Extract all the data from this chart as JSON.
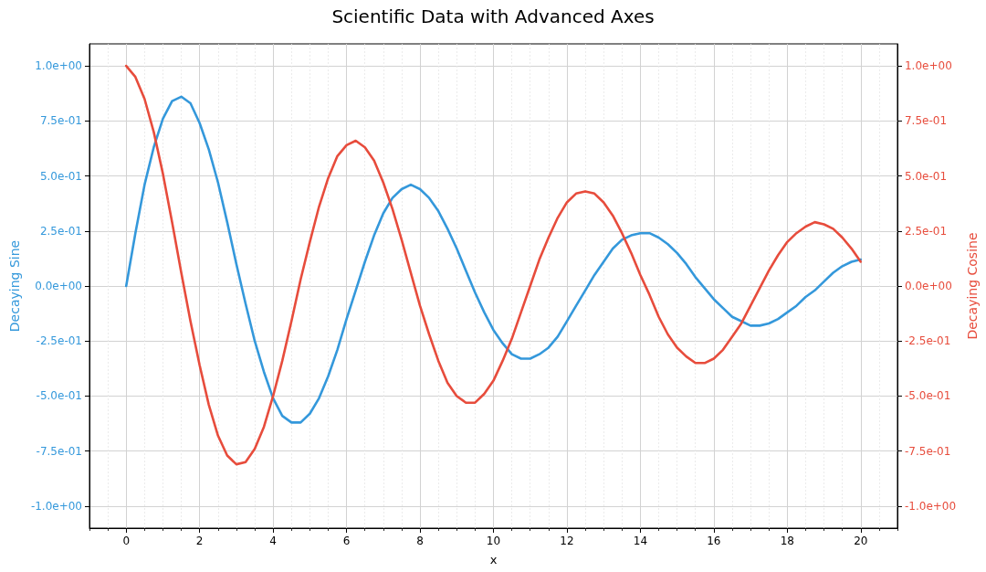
{
  "chart_data": {
    "type": "line",
    "title": "Scientific Data with Advanced Axes",
    "xlabel": "x",
    "ylabel": "Decaying Sine",
    "y2label": "Decaying Cosine",
    "x": [
      0,
      0.25,
      0.5,
      0.75,
      1,
      1.25,
      1.5,
      1.75,
      2,
      2.25,
      2.5,
      2.75,
      3,
      3.25,
      3.5,
      3.75,
      4,
      4.25,
      4.5,
      4.75,
      5,
      5.25,
      5.5,
      5.75,
      6,
      6.25,
      6.5,
      6.75,
      7,
      7.25,
      7.5,
      7.75,
      8,
      8.25,
      8.5,
      8.75,
      9,
      9.25,
      9.5,
      9.75,
      10,
      10.25,
      10.5,
      10.75,
      11,
      11.25,
      11.5,
      11.75,
      12,
      12.25,
      12.5,
      12.75,
      13,
      13.25,
      13.5,
      13.75,
      14,
      14.25,
      14.5,
      14.75,
      15,
      15.25,
      15.5,
      15.75,
      16,
      16.25,
      16.5,
      16.75,
      17,
      17.25,
      17.5,
      17.75,
      18,
      18.25,
      18.5,
      18.75,
      19,
      19.25,
      19.5,
      19.75,
      20
    ],
    "series": [
      {
        "color": "#3498db",
        "values": [
          0,
          0.24,
          0.46,
          0.63,
          0.76,
          0.84,
          0.86,
          0.83,
          0.74,
          0.62,
          0.47,
          0.29,
          0.1,
          -0.08,
          -0.25,
          -0.39,
          -0.51,
          -0.59,
          -0.62,
          -0.62,
          -0.58,
          -0.51,
          -0.41,
          -0.29,
          -0.15,
          -0.02,
          0.11,
          0.23,
          0.33,
          0.4,
          0.44,
          0.46,
          0.44,
          0.4,
          0.34,
          0.26,
          0.17,
          0.07,
          -0.03,
          -0.12,
          -0.2,
          -0.26,
          -0.31,
          -0.33,
          -0.33,
          -0.31,
          -0.28,
          -0.23,
          -0.16,
          -0.09,
          -0.02,
          0.05,
          0.11,
          0.17,
          0.21,
          0.23,
          0.24,
          0.24,
          0.22,
          0.19,
          0.15,
          0.1,
          0.04,
          -0.01,
          -0.06,
          -0.1,
          -0.14,
          -0.16,
          -0.18,
          -0.18,
          -0.17,
          -0.15,
          -0.12,
          -0.09,
          -0.05,
          -0.02,
          0.02,
          0.06,
          0.09,
          0.11,
          0.12
        ]
      },
      {
        "color": "#e74c3c",
        "axis": "y2",
        "values": [
          1,
          0.95,
          0.85,
          0.7,
          0.51,
          0.29,
          0.06,
          -0.16,
          -0.36,
          -0.54,
          -0.68,
          -0.77,
          -0.81,
          -0.8,
          -0.74,
          -0.64,
          -0.5,
          -0.34,
          -0.16,
          0.03,
          0.2,
          0.36,
          0.49,
          0.59,
          0.64,
          0.66,
          0.63,
          0.57,
          0.47,
          0.35,
          0.21,
          0.06,
          -0.09,
          -0.22,
          -0.34,
          -0.44,
          -0.5,
          -0.53,
          -0.53,
          -0.49,
          -0.43,
          -0.34,
          -0.24,
          -0.12,
          0,
          0.12,
          0.22,
          0.31,
          0.38,
          0.42,
          0.43,
          0.42,
          0.38,
          0.32,
          0.24,
          0.15,
          0.05,
          -0.04,
          -0.14,
          -0.22,
          -0.28,
          -0.32,
          -0.35,
          -0.35,
          -0.33,
          -0.29,
          -0.23,
          -0.17,
          -0.09,
          -0.01,
          0.07,
          0.14,
          0.2,
          0.24,
          0.27,
          0.29,
          0.28,
          0.26,
          0.22,
          0.17,
          0.11
        ]
      }
    ],
    "xlim": [
      -1,
      21
    ],
    "xticks": [
      {
        "value": -1,
        "label": null
      },
      {
        "value": -0.5,
        "label": null
      },
      0,
      {
        "value": 0.5,
        "label": null
      },
      {
        "value": 1,
        "label": null
      },
      {
        "value": 1.5,
        "label": null
      },
      2,
      {
        "value": 2.5,
        "label": null
      },
      {
        "value": 3,
        "label": null
      },
      {
        "value": 3.5,
        "label": null
      },
      4,
      {
        "value": 4.5,
        "label": null
      },
      {
        "value": 5,
        "label": null
      },
      {
        "value": 5.5,
        "label": null
      },
      6,
      {
        "value": 6.5,
        "label": null
      },
      {
        "value": 7,
        "label": null
      },
      {
        "value": 7.5,
        "label": null
      },
      8,
      {
        "value": 8.5,
        "label": null
      },
      {
        "value": 9,
        "label": null
      },
      {
        "value": 9.5,
        "label": null
      },
      10,
      {
        "value": 10.5,
        "label": null
      },
      {
        "value": 11,
        "label": null
      },
      {
        "value": 11.5,
        "label": null
      },
      12,
      {
        "value": 12.5,
        "label": null
      },
      {
        "value": 13,
        "label": null
      },
      {
        "value": 13.5,
        "label": null
      },
      14,
      {
        "value": 14.5,
        "label": null
      },
      {
        "value": 15,
        "label": null
      },
      {
        "value": 15.5,
        "label": null
      },
      16,
      {
        "value": 16.5,
        "label": null
      },
      {
        "value": 17,
        "label": null
      },
      {
        "value": 17.5,
        "label": null
      },
      18,
      {
        "value": 18.5,
        "label": null
      },
      {
        "value": 19,
        "label": null
      },
      {
        "value": 19.5,
        "label": null
      },
      20,
      {
        "value": 20.5,
        "label": null
      },
      {
        "value": 21,
        "label": null
      }
    ],
    "ylim": [
      -1.1,
      1.1
    ],
    "yticks": [
      {
        "value": -1,
        "label": "-1.0e+00"
      },
      {
        "value": -0.75,
        "label": "-7.5e-01"
      },
      {
        "value": -0.5,
        "label": "-5.0e-01"
      },
      {
        "value": -0.25,
        "label": "-2.5e-01"
      },
      {
        "value": 0,
        "label": "0.0e+00"
      },
      {
        "value": 0.25,
        "label": "2.5e-01"
      },
      {
        "value": 0.5,
        "label": "5.0e-01"
      },
      {
        "value": 0.75,
        "label": "7.5e-01"
      },
      {
        "value": 1,
        "label": "1.0e+00"
      }
    ],
    "y2lim": [
      -1.1,
      1.1
    ],
    "y2ticks": [
      {
        "value": -1,
        "label": "-1.0e+00"
      },
      {
        "value": -0.75,
        "label": "-7.5e-01"
      },
      {
        "value": -0.5,
        "label": "-5.0e-01"
      },
      {
        "value": -0.25,
        "label": "-2.5e-01"
      },
      {
        "value": 0,
        "label": "0.0e+00"
      },
      {
        "value": 0.25,
        "label": "2.5e-01"
      },
      {
        "value": 0.5,
        "label": "5.0e-01"
      },
      {
        "value": 0.75,
        "label": "7.5e-01"
      },
      {
        "value": 1,
        "label": "1.0e+00"
      }
    ],
    "grid": true
  }
}
